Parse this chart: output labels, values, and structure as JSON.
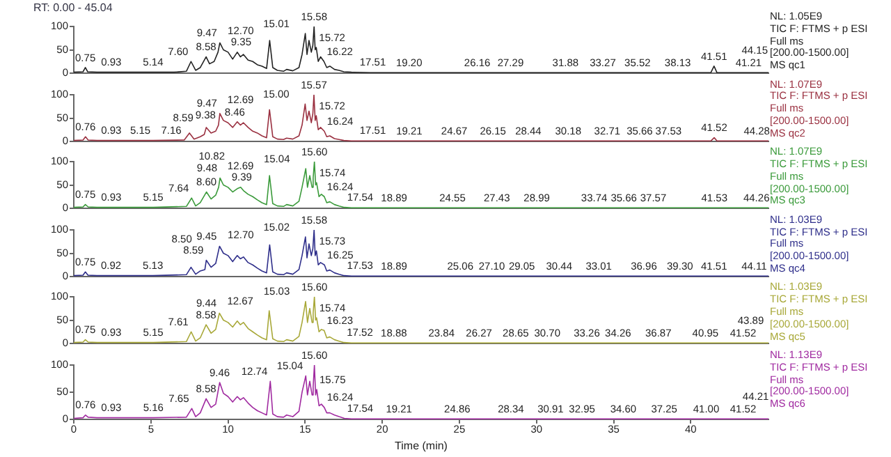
{
  "chart_data": [
    {
      "type": "line",
      "title": "RT: 0.00 - 45.04",
      "xlim": [
        0,
        45.04
      ],
      "xticks": [
        0,
        5,
        10,
        15,
        20,
        25,
        30,
        35,
        40
      ],
      "ylim": [
        0,
        100
      ],
      "yticks": [
        0,
        50,
        100
      ],
      "tick_labels": "y",
      "series": [
        {
          "color": "#222222",
          "x": [
            0,
            0.6,
            0.75,
            0.9,
            1.5,
            3,
            5.14,
            6.5,
            7.3,
            7.6,
            7.9,
            8.2,
            8.58,
            8.8,
            9.1,
            9.35,
            9.47,
            9.7,
            10.0,
            10.3,
            10.6,
            10.8,
            11.0,
            11.3,
            11.6,
            11.9,
            12.2,
            12.5,
            12.7,
            12.9,
            13.2,
            13.6,
            13.8,
            14.2,
            14.6,
            14.8,
            15.01,
            15.12,
            15.25,
            15.4,
            15.5,
            15.58,
            15.65,
            15.72,
            15.85,
            16.0,
            16.22,
            16.4,
            16.6,
            16.9,
            17.2,
            17.51,
            18,
            19.2,
            25,
            30,
            35,
            41.3,
            41.51,
            41.7,
            44.15,
            45.04
          ],
          "values": [
            2,
            3,
            12,
            3,
            2,
            2,
            2,
            2,
            4,
            25,
            6,
            12,
            35,
            20,
            25,
            45,
            65,
            50,
            45,
            30,
            45,
            35,
            40,
            28,
            25,
            18,
            15,
            10,
            70,
            12,
            6,
            4,
            8,
            5,
            12,
            40,
            85,
            40,
            70,
            45,
            60,
            100,
            50,
            55,
            25,
            35,
            25,
            12,
            15,
            8,
            6,
            3,
            2,
            1,
            1,
            1,
            1,
            1,
            15,
            1,
            1,
            1
          ]
        }
      ],
      "annotations": [
        {
          "text": "0.75",
          "x": 0.75,
          "y": 12
        },
        {
          "text": "0.93",
          "x": 0.93,
          "y": 2
        },
        {
          "text": "5.14",
          "x": 5.14,
          "y": 2
        },
        {
          "text": "7.60",
          "x": 7.6,
          "y": 25
        },
        {
          "text": "8.58",
          "x": 8.58,
          "y": 35
        },
        {
          "text": "9.35",
          "x": 9.35,
          "y": 45
        },
        {
          "text": "9.47",
          "x": 9.47,
          "y": 65
        },
        {
          "text": "12.70",
          "x": 12.7,
          "y": 70
        },
        {
          "text": "15.01",
          "x": 15.01,
          "y": 85
        },
        {
          "text": "15.58",
          "x": 15.58,
          "y": 100
        },
        {
          "text": "15.72",
          "x": 15.72,
          "y": 55
        },
        {
          "text": "16.22",
          "x": 16.22,
          "y": 25
        },
        {
          "text": "17.51",
          "x": 17.51,
          "y": 3
        },
        {
          "text": "19.20",
          "x": 19.2,
          "y": 1
        },
        {
          "text": "26.16",
          "x": 26.16,
          "y": 1
        },
        {
          "text": "27.29",
          "x": 27.29,
          "y": 1
        },
        {
          "text": "31.88",
          "x": 31.88,
          "y": 1
        },
        {
          "text": "33.27",
          "x": 33.27,
          "y": 1
        },
        {
          "text": "35.52",
          "x": 35.52,
          "y": 1
        },
        {
          "text": "38.13",
          "x": 38.13,
          "y": 1
        },
        {
          "text": "41.21",
          "x": 41.21,
          "y": 1
        },
        {
          "text": "41.51",
          "x": 41.51,
          "y": 15
        },
        {
          "text": "44.15",
          "x": 44.15,
          "y": 1
        },
        "NL: 1.05E9",
        "TIC F: FTMS + p ESI",
        "Full ms",
        "[200.00-1500.00]",
        "MS qc1"
      ]
    },
    {
      "type": "line",
      "xlim": [
        0,
        45.04
      ],
      "xticks": [
        0,
        5,
        10,
        15,
        20,
        25,
        30,
        35,
        40
      ],
      "ylim": [
        0,
        100
      ],
      "yticks": [
        0,
        50,
        100
      ],
      "tick_labels": "y",
      "series": [
        {
          "color": "#9a3040",
          "x": [
            0,
            0.6,
            0.76,
            0.93,
            1.5,
            3,
            5.15,
            7.16,
            7.5,
            7.8,
            8.2,
            8.46,
            8.59,
            8.9,
            9.2,
            9.38,
            9.47,
            9.7,
            10.0,
            10.3,
            10.6,
            10.8,
            11.0,
            11.3,
            11.6,
            11.9,
            12.2,
            12.5,
            12.69,
            12.9,
            13.2,
            13.6,
            13.8,
            14.2,
            14.6,
            14.8,
            15.0,
            15.12,
            15.25,
            15.4,
            15.5,
            15.57,
            15.65,
            15.72,
            15.85,
            16.0,
            16.24,
            16.4,
            16.6,
            16.9,
            17.2,
            17.51,
            18,
            19.21,
            30,
            41.3,
            41.52,
            41.7,
            44.28,
            45.04
          ],
          "values": [
            2,
            3,
            10,
            3,
            2,
            2,
            2,
            3,
            18,
            5,
            10,
            15,
            30,
            18,
            22,
            35,
            60,
            45,
            40,
            30,
            42,
            35,
            40,
            30,
            22,
            18,
            12,
            8,
            68,
            10,
            5,
            4,
            7,
            5,
            12,
            35,
            80,
            45,
            65,
            40,
            60,
            100,
            45,
            55,
            25,
            30,
            22,
            10,
            12,
            6,
            4,
            2,
            1,
            1,
            1,
            1,
            8,
            1,
            1,
            1
          ]
        }
      ],
      "annotations": [
        {
          "text": "0.76",
          "x": 0.76,
          "y": 10
        },
        {
          "text": "0.93",
          "x": 0.93,
          "y": 3
        },
        {
          "text": "5.15",
          "x": 5.15,
          "y": 2
        },
        {
          "text": "7.16",
          "x": 7.16,
          "y": 3
        },
        {
          "text": "8.46",
          "x": 8.46,
          "y": 15
        },
        {
          "text": "8.59",
          "x": 8.59,
          "y": 30
        },
        {
          "text": "9.38",
          "x": 9.38,
          "y": 35
        },
        {
          "text": "9.47",
          "x": 9.47,
          "y": 60
        },
        {
          "text": "12.69",
          "x": 12.69,
          "y": 68
        },
        {
          "text": "15.00",
          "x": 15.0,
          "y": 80
        },
        {
          "text": "15.57",
          "x": 15.57,
          "y": 100
        },
        {
          "text": "15.72",
          "x": 15.72,
          "y": 55
        },
        {
          "text": "16.24",
          "x": 16.24,
          "y": 22
        },
        {
          "text": "17.51",
          "x": 17.51,
          "y": 2
        },
        {
          "text": "19.21",
          "x": 19.21,
          "y": 1
        },
        {
          "text": "24.67",
          "x": 24.67,
          "y": 1
        },
        {
          "text": "26.15",
          "x": 26.15,
          "y": 1
        },
        {
          "text": "28.44",
          "x": 28.44,
          "y": 1
        },
        {
          "text": "30.18",
          "x": 30.18,
          "y": 1
        },
        {
          "text": "32.71",
          "x": 32.71,
          "y": 1
        },
        {
          "text": "35.66",
          "x": 35.66,
          "y": 1
        },
        {
          "text": "37.53",
          "x": 37.53,
          "y": 1
        },
        {
          "text": "41.52",
          "x": 41.52,
          "y": 8
        },
        {
          "text": "44.28",
          "x": 44.28,
          "y": 1
        },
        "NL: 1.07E9",
        "TIC F: FTMS + p ESI",
        "Full ms",
        "[200.00-1500.00]",
        "MS qc2"
      ]
    },
    {
      "type": "line",
      "xlim": [
        0,
        45.04
      ],
      "xticks": [
        0,
        5,
        10,
        15,
        20,
        25,
        30,
        35,
        40
      ],
      "ylim": [
        0,
        100
      ],
      "yticks": [
        0,
        50,
        100
      ],
      "tick_labels": "y",
      "series": [
        {
          "color": "#3a9a3a",
          "x": [
            0,
            0.6,
            0.75,
            0.93,
            1.5,
            3,
            5.15,
            7.3,
            7.64,
            7.9,
            8.2,
            8.6,
            8.9,
            9.2,
            9.39,
            9.48,
            9.7,
            10.0,
            10.3,
            10.6,
            10.82,
            11.0,
            11.3,
            11.6,
            11.9,
            12.2,
            12.5,
            12.69,
            12.9,
            13.2,
            13.6,
            13.8,
            14.2,
            14.6,
            14.8,
            15.04,
            15.15,
            15.3,
            15.45,
            15.52,
            15.6,
            15.68,
            15.74,
            15.9,
            16.05,
            16.24,
            16.4,
            16.6,
            16.9,
            17.2,
            17.54,
            18,
            18.89,
            30,
            41.53,
            44.26,
            45.04
          ],
          "values": [
            2,
            3,
            8,
            3,
            2,
            2,
            2,
            4,
            22,
            5,
            12,
            35,
            20,
            28,
            45,
            65,
            50,
            45,
            35,
            42,
            45,
            38,
            30,
            25,
            18,
            12,
            8,
            70,
            10,
            5,
            4,
            8,
            5,
            15,
            45,
            85,
            45,
            70,
            45,
            65,
            100,
            50,
            55,
            25,
            30,
            25,
            12,
            14,
            8,
            5,
            2,
            1,
            1,
            1,
            1,
            1,
            1
          ]
        }
      ],
      "annotations": [
        {
          "text": "0.75",
          "x": 0.75,
          "y": 8
        },
        {
          "text": "0.93",
          "x": 0.93,
          "y": 3
        },
        {
          "text": "5.15",
          "x": 5.15,
          "y": 2
        },
        {
          "text": "7.64",
          "x": 7.64,
          "y": 22
        },
        {
          "text": "8.60",
          "x": 8.6,
          "y": 35
        },
        {
          "text": "9.39",
          "x": 9.39,
          "y": 45
        },
        {
          "text": "9.48",
          "x": 9.48,
          "y": 65
        },
        {
          "text": "10.82",
          "x": 10.82,
          "y": 45
        },
        {
          "text": "12.69",
          "x": 12.69,
          "y": 70
        },
        {
          "text": "15.04",
          "x": 15.04,
          "y": 85
        },
        {
          "text": "15.60",
          "x": 15.6,
          "y": 100
        },
        {
          "text": "15.74",
          "x": 15.74,
          "y": 55
        },
        {
          "text": "16.24",
          "x": 16.24,
          "y": 25
        },
        {
          "text": "17.54",
          "x": 17.54,
          "y": 2
        },
        {
          "text": "18.89",
          "x": 18.89,
          "y": 1
        },
        {
          "text": "24.55",
          "x": 24.55,
          "y": 1
        },
        {
          "text": "27.43",
          "x": 27.43,
          "y": 1
        },
        {
          "text": "28.99",
          "x": 28.99,
          "y": 1
        },
        {
          "text": "33.74",
          "x": 33.74,
          "y": 1
        },
        {
          "text": "35.66",
          "x": 35.66,
          "y": 1
        },
        {
          "text": "37.57",
          "x": 37.57,
          "y": 1
        },
        {
          "text": "41.53",
          "x": 41.53,
          "y": 1
        },
        {
          "text": "44.26",
          "x": 44.26,
          "y": 1
        },
        "NL: 1.07E9",
        "TIC F: FTMS + p ESI",
        "Full ms",
        "[200.00-1500.00]",
        "MS qc3"
      ]
    },
    {
      "type": "line",
      "xlim": [
        0,
        45.04
      ],
      "xticks": [
        0,
        5,
        10,
        15,
        20,
        25,
        30,
        35,
        40
      ],
      "ylim": [
        0,
        100
      ],
      "yticks": [
        0,
        50,
        100
      ],
      "tick_labels": "y",
      "series": [
        {
          "color": "#2e2e8a",
          "x": [
            0,
            0.6,
            0.75,
            0.92,
            1.5,
            3,
            5.13,
            7.3,
            7.6,
            7.9,
            8.2,
            8.5,
            8.59,
            8.9,
            9.2,
            9.45,
            9.7,
            10.0,
            10.3,
            10.6,
            10.8,
            11.0,
            11.3,
            11.6,
            11.9,
            12.2,
            12.5,
            12.7,
            12.9,
            13.2,
            13.6,
            13.8,
            14.2,
            14.6,
            14.8,
            15.02,
            15.12,
            15.25,
            15.4,
            15.5,
            15.58,
            15.65,
            15.73,
            15.85,
            16.0,
            16.25,
            16.4,
            16.6,
            16.9,
            17.2,
            17.53,
            18,
            18.89,
            30,
            41.51,
            44.11,
            45.04
          ],
          "values": [
            2,
            3,
            10,
            3,
            2,
            2,
            2,
            4,
            20,
            5,
            12,
            15,
            35,
            20,
            28,
            65,
            50,
            45,
            32,
            45,
            38,
            42,
            30,
            25,
            18,
            12,
            8,
            68,
            10,
            5,
            4,
            8,
            5,
            15,
            45,
            85,
            40,
            70,
            45,
            60,
            100,
            45,
            55,
            25,
            30,
            25,
            12,
            14,
            8,
            5,
            2,
            1,
            1,
            1,
            1,
            1,
            1
          ]
        }
      ],
      "annotations": [
        {
          "text": "0.75",
          "x": 0.75,
          "y": 10
        },
        {
          "text": "0.92",
          "x": 0.92,
          "y": 3
        },
        {
          "text": "5.13",
          "x": 5.13,
          "y": 2
        },
        {
          "text": "8.50",
          "x": 8.5,
          "y": 15
        },
        {
          "text": "8.59",
          "x": 8.59,
          "y": 35
        },
        {
          "text": "9.45",
          "x": 9.45,
          "y": 65
        },
        {
          "text": "12.70",
          "x": 12.7,
          "y": 68
        },
        {
          "text": "15.02",
          "x": 15.02,
          "y": 85
        },
        {
          "text": "15.58",
          "x": 15.58,
          "y": 100
        },
        {
          "text": "15.73",
          "x": 15.73,
          "y": 55
        },
        {
          "text": "16.25",
          "x": 16.25,
          "y": 25
        },
        {
          "text": "17.53",
          "x": 17.53,
          "y": 2
        },
        {
          "text": "18.89",
          "x": 18.89,
          "y": 1
        },
        {
          "text": "25.06",
          "x": 25.06,
          "y": 1
        },
        {
          "text": "27.10",
          "x": 27.1,
          "y": 1
        },
        {
          "text": "29.05",
          "x": 29.05,
          "y": 1
        },
        {
          "text": "30.44",
          "x": 30.44,
          "y": 1
        },
        {
          "text": "33.01",
          "x": 33.01,
          "y": 1
        },
        {
          "text": "36.96",
          "x": 36.96,
          "y": 1
        },
        {
          "text": "39.30",
          "x": 39.3,
          "y": 1
        },
        {
          "text": "41.51",
          "x": 41.51,
          "y": 1
        },
        {
          "text": "44.11",
          "x": 44.11,
          "y": 1
        },
        "NL: 1.03E9",
        "TIC F: FTMS + p ESI",
        "Full ms",
        "[200.00-1500.00]",
        "MS qc4"
      ]
    },
    {
      "type": "line",
      "xlim": [
        0,
        45.04
      ],
      "xticks": [
        0,
        5,
        10,
        15,
        20,
        25,
        30,
        35,
        40
      ],
      "ylim": [
        0,
        100
      ],
      "yticks": [
        0,
        50,
        100
      ],
      "tick_labels": "y",
      "series": [
        {
          "color": "#a8a838",
          "x": [
            0,
            0.6,
            0.75,
            0.93,
            1.5,
            3,
            5.15,
            7.3,
            7.61,
            7.9,
            8.2,
            8.58,
            8.9,
            9.2,
            9.44,
            9.7,
            10.0,
            10.3,
            10.6,
            10.8,
            11.0,
            11.3,
            11.6,
            11.9,
            12.2,
            12.5,
            12.67,
            12.9,
            13.2,
            13.6,
            13.8,
            14.2,
            14.6,
            14.8,
            15.03,
            15.15,
            15.3,
            15.45,
            15.52,
            15.6,
            15.68,
            15.74,
            15.9,
            16.05,
            16.23,
            16.4,
            16.6,
            16.9,
            17.2,
            17.52,
            18,
            18.88,
            30,
            41.52,
            43.89,
            45.04
          ],
          "values": [
            2,
            3,
            8,
            3,
            2,
            2,
            2,
            4,
            25,
            5,
            12,
            40,
            22,
            30,
            65,
            50,
            45,
            35,
            48,
            40,
            45,
            32,
            25,
            18,
            12,
            8,
            70,
            10,
            5,
            4,
            8,
            5,
            15,
            45,
            90,
            45,
            75,
            45,
            65,
            100,
            50,
            55,
            25,
            30,
            28,
            12,
            14,
            8,
            5,
            2,
            1,
            1,
            1,
            1,
            1,
            1
          ]
        }
      ],
      "annotations": [
        {
          "text": "0.75",
          "x": 0.75,
          "y": 8
        },
        {
          "text": "0.93",
          "x": 0.93,
          "y": 3
        },
        {
          "text": "5.15",
          "x": 5.15,
          "y": 2
        },
        {
          "text": "7.61",
          "x": 7.61,
          "y": 25
        },
        {
          "text": "8.58",
          "x": 8.58,
          "y": 40
        },
        {
          "text": "9.44",
          "x": 9.44,
          "y": 65
        },
        {
          "text": "12.67",
          "x": 12.67,
          "y": 70
        },
        {
          "text": "15.03",
          "x": 15.03,
          "y": 90
        },
        {
          "text": "15.60",
          "x": 15.6,
          "y": 100
        },
        {
          "text": "15.74",
          "x": 15.74,
          "y": 55
        },
        {
          "text": "16.23",
          "x": 16.23,
          "y": 28
        },
        {
          "text": "17.52",
          "x": 17.52,
          "y": 2
        },
        {
          "text": "18.88",
          "x": 18.88,
          "y": 1
        },
        {
          "text": "23.84",
          "x": 23.84,
          "y": 1
        },
        {
          "text": "26.27",
          "x": 26.27,
          "y": 1
        },
        {
          "text": "28.65",
          "x": 28.65,
          "y": 1
        },
        {
          "text": "30.70",
          "x": 30.7,
          "y": 1
        },
        {
          "text": "33.26",
          "x": 33.26,
          "y": 1
        },
        {
          "text": "34.26",
          "x": 34.26,
          "y": 1
        },
        {
          "text": "36.87",
          "x": 36.87,
          "y": 1
        },
        {
          "text": "40.95",
          "x": 40.95,
          "y": 1
        },
        {
          "text": "41.52",
          "x": 41.52,
          "y": 1
        },
        {
          "text": "43.89",
          "x": 43.89,
          "y": 1
        },
        "NL: 1.03E9",
        "TIC F: FTMS + p ESI",
        "Full ms",
        "[200.00-1500.00]",
        "MS qc5"
      ]
    },
    {
      "type": "line",
      "xlabel": "Time (min)",
      "xlim": [
        0,
        45.04
      ],
      "xticks": [
        0,
        5,
        10,
        15,
        20,
        25,
        30,
        35,
        40
      ],
      "ylim": [
        0,
        100
      ],
      "yticks": [
        0,
        50,
        100
      ],
      "series": [
        {
          "color": "#a02aa0",
          "x": [
            0,
            0.6,
            0.76,
            0.93,
            1.5,
            3,
            5.16,
            7.3,
            7.65,
            7.9,
            8.2,
            8.58,
            8.9,
            9.2,
            9.46,
            9.7,
            10.0,
            10.3,
            10.6,
            10.8,
            11.0,
            11.3,
            11.6,
            11.9,
            12.2,
            12.5,
            12.74,
            12.9,
            13.2,
            13.6,
            13.8,
            14.2,
            14.6,
            14.8,
            15.04,
            15.15,
            15.3,
            15.45,
            15.52,
            15.6,
            15.68,
            15.75,
            15.9,
            16.05,
            16.24,
            16.4,
            16.6,
            16.9,
            17.2,
            17.54,
            18,
            19.21,
            30,
            41.52,
            44.21,
            45.04
          ],
          "values": [
            2,
            3,
            8,
            4,
            3,
            3,
            3,
            4,
            20,
            5,
            12,
            38,
            22,
            28,
            68,
            48,
            42,
            32,
            42,
            36,
            40,
            30,
            22,
            16,
            12,
            8,
            70,
            10,
            5,
            4,
            8,
            5,
            15,
            50,
            80,
            45,
            70,
            45,
            60,
            100,
            45,
            55,
            25,
            28,
            22,
            12,
            12,
            8,
            5,
            2,
            1,
            1,
            1,
            1,
            1,
            1
          ]
        }
      ],
      "annotations": [
        {
          "text": "0.76",
          "x": 0.76,
          "y": 8
        },
        {
          "text": "0.93",
          "x": 0.93,
          "y": 4
        },
        {
          "text": "5.16",
          "x": 5.16,
          "y": 3
        },
        {
          "text": "7.65",
          "x": 7.65,
          "y": 20
        },
        {
          "text": "8.58",
          "x": 8.58,
          "y": 38
        },
        {
          "text": "9.46",
          "x": 9.46,
          "y": 68
        },
        {
          "text": "12.74",
          "x": 12.74,
          "y": 70
        },
        {
          "text": "15.04",
          "x": 15.04,
          "y": 80
        },
        {
          "text": "15.60",
          "x": 15.6,
          "y": 100
        },
        {
          "text": "15.75",
          "x": 15.75,
          "y": 55
        },
        {
          "text": "16.24",
          "x": 16.24,
          "y": 22
        },
        {
          "text": "17.54",
          "x": 17.54,
          "y": 2
        },
        {
          "text": "19.21",
          "x": 19.21,
          "y": 1
        },
        {
          "text": "24.86",
          "x": 24.86,
          "y": 1
        },
        {
          "text": "28.34",
          "x": 28.34,
          "y": 1
        },
        {
          "text": "30.91",
          "x": 30.91,
          "y": 1
        },
        {
          "text": "32.95",
          "x": 32.95,
          "y": 1
        },
        {
          "text": "34.60",
          "x": 34.6,
          "y": 1
        },
        {
          "text": "37.25",
          "x": 37.25,
          "y": 1
        },
        {
          "text": "41.00",
          "x": 41.0,
          "y": 1
        },
        {
          "text": "41.52",
          "x": 41.52,
          "y": 1
        },
        {
          "text": "44.21",
          "x": 44.21,
          "y": 1
        },
        "NL: 1.13E9",
        "TIC F: FTMS + p ESI",
        "Full ms",
        "[200.00-1500.00]",
        "MS qc6"
      ]
    }
  ]
}
